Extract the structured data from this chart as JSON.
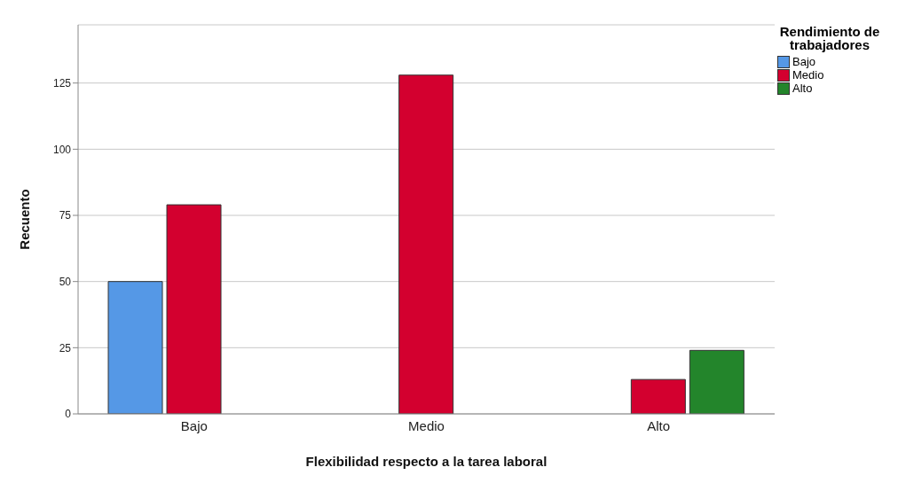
{
  "chart_data": {
    "type": "bar",
    "xlabel": "Flexibilidad respecto a la tarea laboral",
    "ylabel": "Recuento",
    "legend_title": "Rendimiento de trabajadores",
    "categories": [
      "Bajo",
      "Medio",
      "Alto"
    ],
    "series": [
      {
        "name": "Bajo",
        "color": "#5598e6",
        "values": [
          50,
          null,
          null
        ]
      },
      {
        "name": "Medio",
        "color": "#d3002f",
        "values": [
          79,
          128,
          13
        ]
      },
      {
        "name": "Alto",
        "color": "#23852b",
        "values": [
          null,
          null,
          24
        ]
      }
    ],
    "ylim": [
      0,
      147
    ],
    "yticks": [
      0,
      25,
      50,
      75,
      100,
      125
    ],
    "grid": "y",
    "legend": "top right"
  }
}
